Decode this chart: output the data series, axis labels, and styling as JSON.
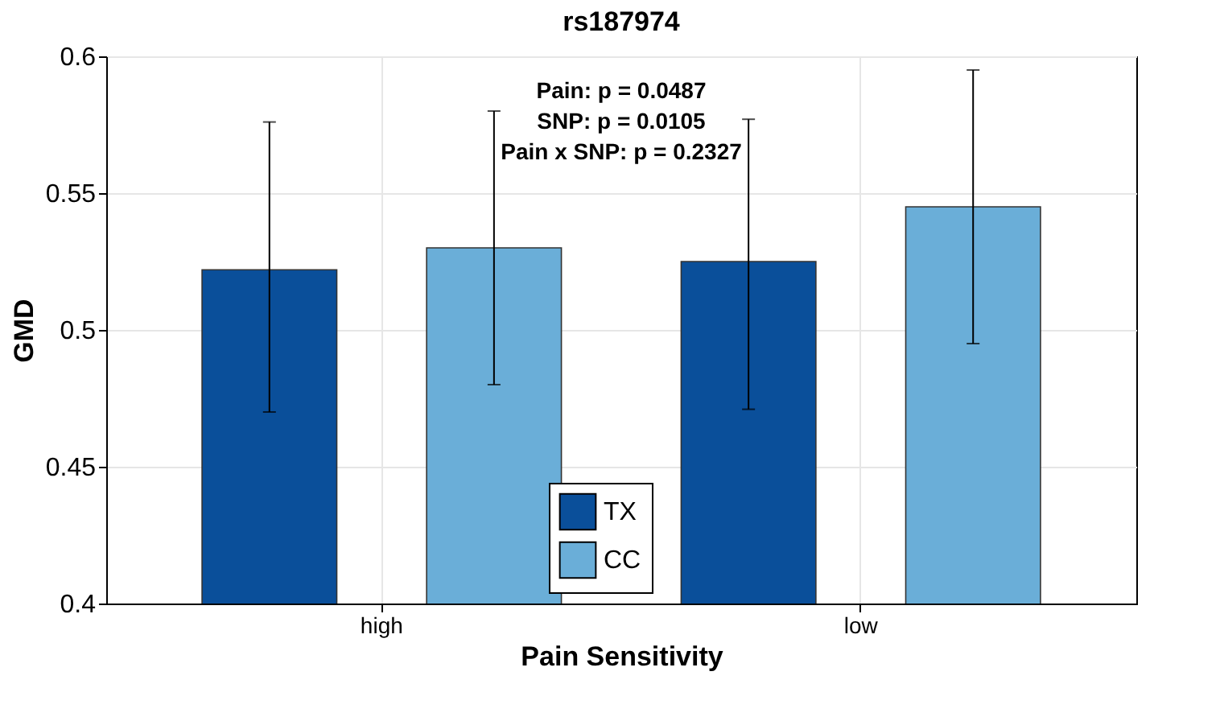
{
  "chart_data": {
    "type": "bar",
    "title": "rs187974",
    "xlabel": "Pain Sensitivity",
    "ylabel": "GMD",
    "categories": [
      "high",
      "low"
    ],
    "series": [
      {
        "name": "TX",
        "color": "#0a4f9a",
        "values": [
          0.522,
          0.525
        ],
        "errors": [
          [
            0.47,
            0.576
          ],
          [
            0.471,
            0.577
          ]
        ]
      },
      {
        "name": "CC",
        "color": "#6aaed8",
        "values": [
          0.53,
          0.545
        ],
        "errors": [
          [
            0.48,
            0.58
          ],
          [
            0.495,
            0.595
          ]
        ]
      }
    ],
    "ylim": [
      0.4,
      0.6
    ],
    "yticks": [
      0.4,
      0.45,
      0.5,
      0.55,
      0.6
    ],
    "grid": true,
    "legend": "bottom",
    "annotations": [
      "Pain: p = 0.0487",
      "SNP: p = 0.0105",
      "Pain x SNP: p = 0.2327"
    ]
  }
}
